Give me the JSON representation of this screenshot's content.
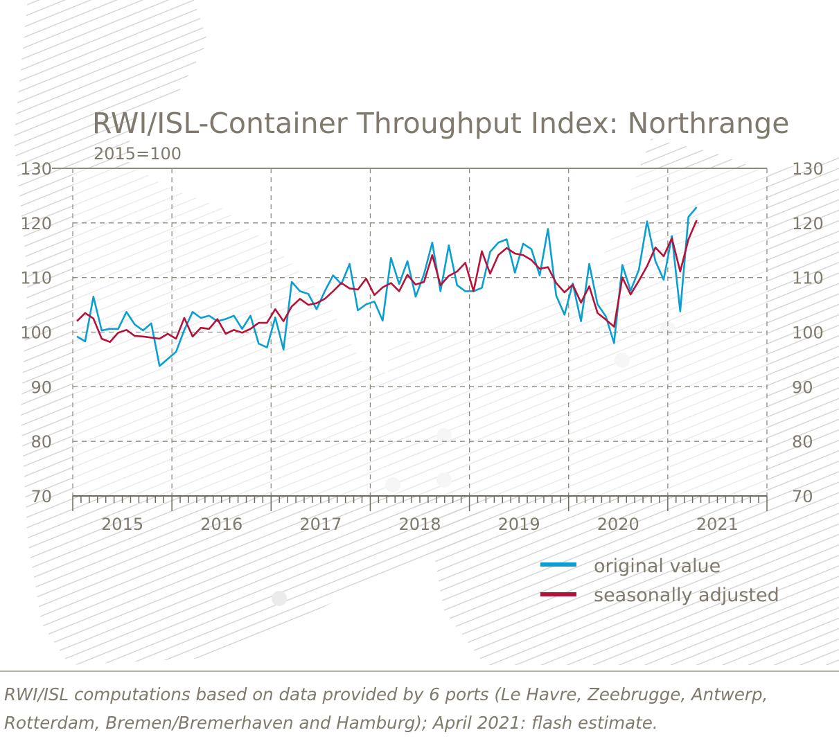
{
  "chart_data": {
    "type": "line",
    "title": "RWI/ISL-Container Throughput Index: Northrange",
    "subtitle": "2015=100",
    "ylim": [
      70,
      130
    ],
    "yticks": [
      70,
      80,
      90,
      100,
      110,
      120,
      130
    ],
    "xlim": [
      "2015-01",
      "2021-12"
    ],
    "xtick_labels": [
      "2015",
      "2016",
      "2017",
      "2018",
      "2019",
      "2020",
      "2021"
    ],
    "x_start": "2015-01",
    "x_end": "2021-04",
    "frequency": "monthly",
    "grid": true,
    "legend_position": "bottom-right",
    "series": [
      {
        "name": "original value",
        "color": "#0a9fd0",
        "values": [
          99.2,
          98.3,
          106.5,
          100.3,
          100.6,
          100.6,
          103.7,
          101.4,
          100.3,
          101.6,
          93.8,
          95.1,
          96.4,
          100.4,
          103.7,
          102.6,
          103.0,
          102.0,
          102.4,
          103.0,
          100.6,
          103.0,
          97.9,
          97.2,
          102.7,
          96.8,
          109.2,
          107.5,
          107.0,
          104.2,
          107.5,
          110.4,
          108.8,
          112.5,
          104.0,
          105.1,
          105.6,
          102.1,
          113.6,
          108.8,
          113.0,
          106.5,
          110.6,
          116.4,
          107.5,
          115.9,
          108.6,
          107.5,
          107.5,
          108.1,
          114.7,
          116.4,
          117.0,
          110.9,
          116.2,
          115.2,
          110.4,
          118.9,
          106.7,
          103.2,
          108.9,
          102.0,
          112.5,
          105.1,
          102.9,
          98.0,
          112.3,
          107.6,
          111.4,
          120.3,
          113.0,
          109.6,
          117.6,
          103.8,
          121.1,
          122.9
        ]
      },
      {
        "name": "seasonally adjusted",
        "color": "#b5123a",
        "values": [
          102.0,
          103.5,
          102.5,
          98.8,
          98.2,
          99.9,
          100.4,
          99.3,
          99.2,
          99.0,
          98.8,
          99.7,
          98.8,
          102.6,
          99.2,
          100.8,
          100.6,
          102.4,
          99.7,
          100.4,
          99.9,
          100.6,
          101.7,
          101.7,
          104.2,
          102.0,
          104.7,
          106.1,
          105.0,
          105.3,
          106.1,
          107.5,
          109.0,
          108.0,
          107.8,
          109.8,
          106.8,
          108.2,
          109.0,
          107.5,
          110.5,
          108.7,
          109.2,
          114.1,
          108.6,
          110.3,
          111.1,
          112.7,
          107.5,
          114.8,
          110.7,
          114.1,
          115.4,
          114.4,
          114.1,
          113.2,
          111.6,
          111.9,
          109.0,
          107.3,
          108.7,
          105.4,
          108.4,
          103.5,
          102.3,
          101.0,
          110.0,
          106.9,
          109.4,
          112.1,
          115.5,
          113.9,
          117.2,
          111.1,
          117.0,
          120.5
        ]
      }
    ],
    "note": "RWI/ISL computations based on data provided by 6 ports (Le Havre, Zeebrugge, Antwerp, Rotterdam, Bremen/Bremerhaven and Hamburg); April 2021: flash estimate."
  }
}
